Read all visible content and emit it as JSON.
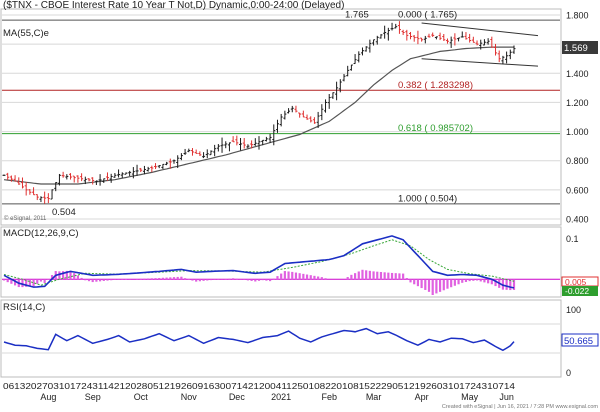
{
  "title": "($TNX - CBOE Interest Rate 10 Year T Not,D) Dynamic,0:00-24:00 (Delayed)",
  "colors": {
    "background": "#ffffff",
    "grid": "#d8d8d8",
    "up_bar": "#1a1a1a",
    "down_bar": "#e03030",
    "ma_line": "#555555",
    "fib_382": "#b22222",
    "fib_618": "#2e9e2e",
    "fib_0_and_100": "#555555",
    "trendlines": "#333333",
    "macd_line": "#1b2fc4",
    "macd_signal": "#3aa83a",
    "macd_hist": "#e060e0",
    "macd_zero": "#cc00cc",
    "rsi_line": "#1b2fc4",
    "price_tag": "#3a3a3a",
    "macd_tag_red": "#e03030",
    "macd_tag_green": "#2e9e2e",
    "rsi_tag": "#ffffff"
  },
  "chart_data": [
    {
      "type": "line",
      "panel": "price",
      "label": "MA(55,C)e",
      "y_ticks": [
        "1.800",
        "1.600",
        "1.400",
        "1.200",
        "1.000",
        "0.800",
        "0.600",
        "0.400"
      ],
      "ylim": [
        0.4,
        1.8
      ],
      "last_price": "1.569",
      "x_date_labels": "06132027031017243114212028051219260916300714212004112501082201081522290512192603101724310714",
      "x_months": [
        "Aug",
        "Sep",
        "Oct",
        "Nov",
        "Dec",
        "2021",
        "Feb",
        "Mar",
        "Apr",
        "May",
        "Jun"
      ],
      "price_anchors": [
        [
          0,
          0.7
        ],
        [
          3,
          0.66
        ],
        [
          6,
          0.6
        ],
        [
          9,
          0.55
        ],
        [
          12,
          0.54
        ],
        [
          13,
          0.6
        ],
        [
          15,
          0.7
        ],
        [
          20,
          0.68
        ],
        [
          25,
          0.66
        ],
        [
          30,
          0.7
        ],
        [
          36,
          0.73
        ],
        [
          40,
          0.75
        ],
        [
          46,
          0.8
        ],
        [
          50,
          0.87
        ],
        [
          54,
          0.83
        ],
        [
          58,
          0.9
        ],
        [
          62,
          0.93
        ],
        [
          66,
          0.9
        ],
        [
          69,
          0.93
        ],
        [
          72,
          0.96
        ],
        [
          75,
          1.1
        ],
        [
          78,
          1.16
        ],
        [
          81,
          1.1
        ],
        [
          84,
          1.06
        ],
        [
          87,
          1.2
        ],
        [
          90,
          1.3
        ],
        [
          93,
          1.42
        ],
        [
          96,
          1.53
        ],
        [
          100,
          1.63
        ],
        [
          103,
          1.68
        ],
        [
          106,
          1.72
        ],
        [
          109,
          1.66
        ],
        [
          113,
          1.63
        ],
        [
          116,
          1.66
        ],
        [
          120,
          1.62
        ],
        [
          124,
          1.65
        ],
        [
          128,
          1.6
        ],
        [
          131,
          1.62
        ],
        [
          134,
          1.5
        ],
        [
          136,
          1.52
        ],
        [
          138,
          1.569
        ]
      ],
      "ma_anchors": [
        [
          0,
          0.67
        ],
        [
          10,
          0.64
        ],
        [
          20,
          0.64
        ],
        [
          30,
          0.67
        ],
        [
          40,
          0.72
        ],
        [
          50,
          0.78
        ],
        [
          60,
          0.84
        ],
        [
          70,
          0.91
        ],
        [
          80,
          0.98
        ],
        [
          88,
          1.07
        ],
        [
          95,
          1.2
        ],
        [
          100,
          1.32
        ],
        [
          105,
          1.42
        ],
        [
          110,
          1.5
        ],
        [
          118,
          1.55
        ],
        [
          125,
          1.57
        ],
        [
          132,
          1.58
        ],
        [
          138,
          1.58
        ]
      ],
      "fib_levels": [
        {
          "value": 1.765,
          "label": "0.000 ( 1.765)",
          "left_label": "1.765"
        },
        {
          "value": 1.283298,
          "label": "0.382 ( 1.283298)"
        },
        {
          "value": 0.985702,
          "label": "0.618 ( 0.985702)"
        },
        {
          "value": 0.504,
          "label": "1.000 ( 0.504)",
          "left_label": "0.504"
        }
      ],
      "trendlines": [
        [
          [
            113,
            1.745
          ],
          [
            138,
            1.645
          ]
        ],
        [
          [
            113,
            1.5
          ],
          [
            138,
            1.435
          ]
        ]
      ]
    },
    {
      "type": "line",
      "panel": "macd",
      "label": "MACD(12,26,9,C)",
      "y_ticks": [
        "0.1"
      ],
      "ylim": [
        -0.04,
        0.125
      ],
      "values_shown": [
        "0.005",
        "-0.022"
      ],
      "macd_anchors": [
        [
          0,
          0.01
        ],
        [
          4,
          -0.01
        ],
        [
          8,
          -0.02
        ],
        [
          11,
          -0.018
        ],
        [
          14,
          0.01
        ],
        [
          18,
          0.02
        ],
        [
          24,
          0.01
        ],
        [
          30,
          0.012
        ],
        [
          35,
          0.015
        ],
        [
          42,
          0.02
        ],
        [
          48,
          0.025
        ],
        [
          52,
          0.018
        ],
        [
          56,
          0.02
        ],
        [
          62,
          0.022
        ],
        [
          68,
          0.015
        ],
        [
          72,
          0.018
        ],
        [
          76,
          0.04
        ],
        [
          82,
          0.045
        ],
        [
          88,
          0.05
        ],
        [
          92,
          0.06
        ],
        [
          97,
          0.09
        ],
        [
          101,
          0.1
        ],
        [
          105,
          0.11
        ],
        [
          108,
          0.1
        ],
        [
          112,
          0.06
        ],
        [
          116,
          0.02
        ],
        [
          120,
          0.01
        ],
        [
          124,
          0.012
        ],
        [
          128,
          0.01
        ],
        [
          132,
          0.0
        ],
        [
          135,
          -0.015
        ],
        [
          137,
          -0.02
        ],
        [
          138,
          -0.022
        ]
      ],
      "signal_anchors": [
        [
          0,
          0.012
        ],
        [
          5,
          0.0
        ],
        [
          10,
          -0.015
        ],
        [
          15,
          0.0
        ],
        [
          22,
          0.015
        ],
        [
          30,
          0.013
        ],
        [
          40,
          0.017
        ],
        [
          50,
          0.022
        ],
        [
          60,
          0.021
        ],
        [
          70,
          0.018
        ],
        [
          78,
          0.03
        ],
        [
          86,
          0.045
        ],
        [
          94,
          0.065
        ],
        [
          100,
          0.085
        ],
        [
          105,
          0.1
        ],
        [
          110,
          0.085
        ],
        [
          115,
          0.05
        ],
        [
          120,
          0.025
        ],
        [
          126,
          0.014
        ],
        [
          132,
          0.008
        ],
        [
          138,
          -0.005
        ]
      ]
    },
    {
      "type": "line",
      "panel": "rsi",
      "label": "RSI(14,C)",
      "y_ticks": [
        "100",
        "0"
      ],
      "ylim": [
        0,
        100
      ],
      "last_value": "50.665",
      "rsi_anchors": [
        [
          0,
          50
        ],
        [
          3,
          45
        ],
        [
          6,
          44
        ],
        [
          9,
          40
        ],
        [
          12,
          38
        ],
        [
          14,
          62
        ],
        [
          17,
          52
        ],
        [
          20,
          60
        ],
        [
          24,
          48
        ],
        [
          28,
          54
        ],
        [
          31,
          60
        ],
        [
          34,
          50
        ],
        [
          38,
          55
        ],
        [
          42,
          63
        ],
        [
          46,
          52
        ],
        [
          50,
          60
        ],
        [
          54,
          48
        ],
        [
          58,
          57
        ],
        [
          62,
          54
        ],
        [
          66,
          49
        ],
        [
          70,
          57
        ],
        [
          74,
          60
        ],
        [
          77,
          67
        ],
        [
          80,
          56
        ],
        [
          83,
          50
        ],
        [
          86,
          58
        ],
        [
          89,
          63
        ],
        [
          92,
          68
        ],
        [
          95,
          66
        ],
        [
          98,
          71
        ],
        [
          101,
          63
        ],
        [
          104,
          66
        ],
        [
          106,
          61
        ],
        [
          109,
          52
        ],
        [
          112,
          45
        ],
        [
          115,
          54
        ],
        [
          118,
          50
        ],
        [
          121,
          56
        ],
        [
          124,
          55
        ],
        [
          127,
          49
        ],
        [
          130,
          53
        ],
        [
          133,
          43
        ],
        [
          135,
          37
        ],
        [
          137,
          44
        ],
        [
          138,
          50.665
        ]
      ]
    }
  ],
  "watermark": "© eSignal, 2011",
  "footer": "Created with eSignal | Jun 16, 2021 / 7:28 PM www.esignal.com"
}
